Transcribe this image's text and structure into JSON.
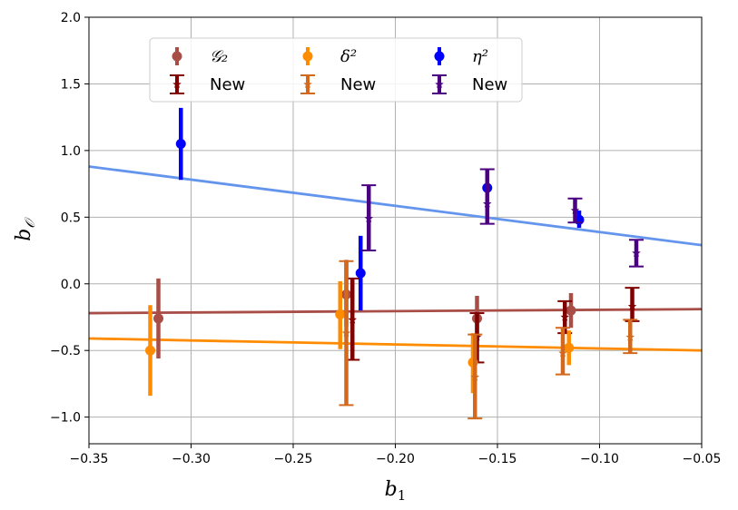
{
  "chart_data": {
    "type": "scatter",
    "title": "",
    "xlabel": "b",
    "xlabel_sub": "1",
    "ylabel": "b",
    "ylabel_sub": "𝒪",
    "xlim": [
      -0.35,
      -0.05
    ],
    "ylim": [
      -1.2,
      2.0
    ],
    "xticks": [
      -0.35,
      -0.3,
      -0.25,
      -0.2,
      -0.15,
      -0.1,
      -0.05
    ],
    "xtick_labels": [
      "−0.35",
      "−0.30",
      "−0.25",
      "−0.20",
      "−0.15",
      "−0.10",
      "−0.05"
    ],
    "yticks": [
      -1.0,
      -0.5,
      0.0,
      0.5,
      1.0,
      1.5,
      2.0
    ],
    "ytick_labels": [
      "−1.0",
      "−0.5",
      "0.0",
      "0.5",
      "1.0",
      "1.5",
      "2.0"
    ],
    "grid": true,
    "legend_position": "top-left",
    "legend": [
      {
        "series": 0,
        "label": "𝒢₂"
      },
      {
        "series": 1,
        "label": "New"
      },
      {
        "series": 2,
        "label": "δ²"
      },
      {
        "series": 3,
        "label": "New"
      },
      {
        "series": 4,
        "label": "η²"
      },
      {
        "series": 5,
        "label": "New"
      }
    ],
    "series": [
      {
        "name": "G2",
        "color": "#a84e47",
        "marker": "circle",
        "points": [
          {
            "x": -0.316,
            "y": -0.26,
            "lo": -0.56,
            "hi": 0.04
          },
          {
            "x": -0.224,
            "y": -0.08,
            "lo": -0.32,
            "hi": 0.18
          },
          {
            "x": -0.16,
            "y": -0.26,
            "lo": -0.42,
            "hi": -0.09
          },
          {
            "x": -0.114,
            "y": -0.2,
            "lo": -0.33,
            "hi": -0.07
          }
        ]
      },
      {
        "name": "G2 New",
        "color": "#800000",
        "marker": "star",
        "caps": true,
        "points": [
          {
            "x": -0.221,
            "y": -0.27,
            "lo": -0.57,
            "hi": 0.04
          },
          {
            "x": -0.16,
            "y": -0.4,
            "lo": -0.59,
            "hi": -0.22
          },
          {
            "x": -0.117,
            "y": -0.25,
            "lo": -0.37,
            "hi": -0.13
          },
          {
            "x": -0.084,
            "y": -0.17,
            "lo": -0.28,
            "hi": -0.03
          }
        ]
      },
      {
        "name": "delta2",
        "color": "#ff8c00",
        "marker": "circle",
        "points": [
          {
            "x": -0.32,
            "y": -0.5,
            "lo": -0.84,
            "hi": -0.16
          },
          {
            "x": -0.227,
            "y": -0.23,
            "lo": -0.49,
            "hi": 0.02
          },
          {
            "x": -0.162,
            "y": -0.59,
            "lo": -0.82,
            "hi": -0.37
          },
          {
            "x": -0.115,
            "y": -0.48,
            "lo": -0.61,
            "hi": -0.35
          }
        ]
      },
      {
        "name": "delta2 New",
        "color": "#d2691e",
        "marker": "star",
        "caps": true,
        "points": [
          {
            "x": -0.224,
            "y": -0.37,
            "lo": -0.91,
            "hi": 0.17
          },
          {
            "x": -0.161,
            "y": -0.7,
            "lo": -1.01,
            "hi": -0.38
          },
          {
            "x": -0.118,
            "y": -0.52,
            "lo": -0.68,
            "hi": -0.33
          },
          {
            "x": -0.085,
            "y": -0.4,
            "lo": -0.52,
            "hi": -0.27
          }
        ]
      },
      {
        "name": "eta2",
        "color": "#0000ff",
        "marker": "circle",
        "points": [
          {
            "x": -0.305,
            "y": 1.05,
            "lo": 0.78,
            "hi": 1.32
          },
          {
            "x": -0.217,
            "y": 0.08,
            "lo": -0.2,
            "hi": 0.36
          },
          {
            "x": -0.155,
            "y": 0.72,
            "lo": 0.58,
            "hi": 0.86
          },
          {
            "x": -0.11,
            "y": 0.48,
            "lo": 0.42,
            "hi": 0.55
          }
        ]
      },
      {
        "name": "eta2 New",
        "color": "#4b0082",
        "marker": "star",
        "caps": true,
        "points": [
          {
            "x": -0.213,
            "y": 0.49,
            "lo": 0.25,
            "hi": 0.74
          },
          {
            "x": -0.155,
            "y": 0.6,
            "lo": 0.45,
            "hi": 0.86
          },
          {
            "x": -0.112,
            "y": 0.55,
            "lo": 0.46,
            "hi": 0.64
          },
          {
            "x": -0.082,
            "y": 0.23,
            "lo": 0.13,
            "hi": 0.33
          }
        ]
      }
    ],
    "fit_lines": [
      {
        "name": "eta2 fit",
        "color": "#6495ed",
        "x": [
          -0.35,
          -0.05
        ],
        "y": [
          0.88,
          0.29
        ]
      },
      {
        "name": "G2 fit",
        "color": "#a84e47",
        "x": [
          -0.35,
          -0.05
        ],
        "y": [
          -0.22,
          -0.19
        ]
      },
      {
        "name": "delta2 fit",
        "color": "#ff8c00",
        "x": [
          -0.35,
          -0.05
        ],
        "y": [
          -0.41,
          -0.5
        ]
      }
    ]
  }
}
